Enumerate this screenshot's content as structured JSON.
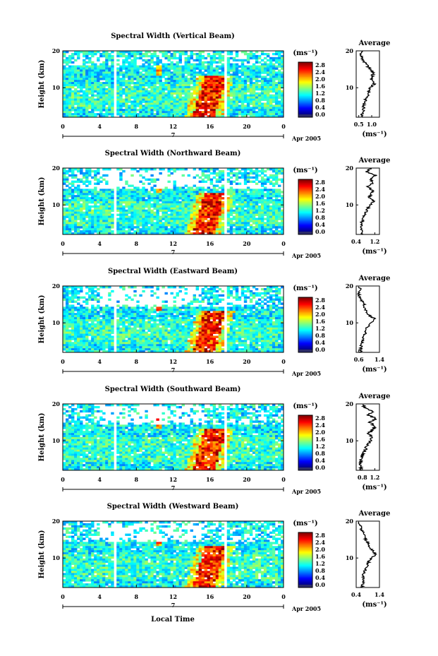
{
  "figure": {
    "xlabel": "Local Time",
    "ylabel": "Height (km)",
    "date_label": "Apr 2005",
    "date_day": "7",
    "cbar_unit": "(ms⁻¹)",
    "avg_title": "Average",
    "avg_unit": "(ms⁻¹)"
  },
  "chart_data": [
    {
      "type": "heatmap",
      "title": "Spectral Width (Vertical Beam)",
      "x_ticks": [
        "0",
        "4",
        "8",
        "12",
        "16",
        "20",
        "0"
      ],
      "y_ticks": [
        "20",
        "10"
      ],
      "xlim": [
        0,
        24
      ],
      "ylim": [
        2,
        20
      ],
      "colorbar_ticks": [
        "2.8",
        "2.4",
        "2.0",
        "1.6",
        "1.2",
        "0.8",
        "0.4",
        "0.0"
      ],
      "colorbar_range": [
        0,
        3.0
      ],
      "profile": {
        "title": "Average",
        "x_ticks": [
          "0.5",
          "1.0"
        ],
        "xlim": [
          0.4,
          1.3
        ],
        "heights": [
          2,
          3,
          4,
          5,
          6,
          7,
          8,
          9,
          10,
          11,
          12,
          13,
          14,
          15,
          16,
          17,
          18,
          19,
          20
        ],
        "values": [
          0.62,
          0.65,
          0.67,
          0.69,
          0.72,
          0.78,
          0.84,
          0.88,
          0.92,
          1.1,
          0.98,
          1.02,
          1.06,
          0.95,
          0.82,
          0.72,
          0.64,
          0.58,
          0.66
        ]
      }
    },
    {
      "type": "heatmap",
      "title": "Spectral Width (Northward Beam)",
      "x_ticks": [
        "0",
        "4",
        "8",
        "12",
        "16",
        "20",
        "0"
      ],
      "y_ticks": [
        "20",
        "10"
      ],
      "xlim": [
        0,
        24
      ],
      "ylim": [
        2,
        20
      ],
      "colorbar_ticks": [
        "2.8",
        "2.4",
        "2.0",
        "1.6",
        "1.2",
        "0.8",
        "0.4",
        "0.0"
      ],
      "colorbar_range": [
        0,
        3.0
      ],
      "profile": {
        "title": "Average",
        "x_ticks": [
          "0.4",
          "1.2"
        ],
        "xlim": [
          0.4,
          1.4
        ],
        "heights": [
          2,
          3,
          4,
          5,
          6,
          7,
          8,
          9,
          10,
          11,
          12,
          13,
          14,
          15,
          16,
          17,
          18,
          19,
          20
        ],
        "values": [
          0.6,
          0.62,
          0.64,
          0.62,
          0.68,
          0.72,
          0.8,
          0.9,
          1.0,
          1.18,
          0.95,
          1.05,
          1.1,
          0.9,
          1.15,
          1.0,
          1.25,
          0.85,
          1.05
        ]
      }
    },
    {
      "type": "heatmap",
      "title": "Spectral Width (Eastward Beam)",
      "x_ticks": [
        "0",
        "4",
        "8",
        "12",
        "16",
        "20",
        "0"
      ],
      "y_ticks": [
        "20",
        "10"
      ],
      "xlim": [
        0,
        24
      ],
      "ylim": [
        2,
        20
      ],
      "colorbar_ticks": [
        "2.8",
        "2.4",
        "2.0",
        "1.6",
        "1.2",
        "0.8",
        "0.4",
        "0.0"
      ],
      "colorbar_range": [
        0,
        3.0
      ],
      "profile": {
        "title": "Average",
        "x_ticks": [
          "0.6",
          "1.4"
        ],
        "xlim": [
          0.5,
          1.4
        ],
        "heights": [
          2,
          3,
          4,
          5,
          6,
          7,
          8,
          9,
          10,
          11,
          12,
          13,
          14,
          15,
          16,
          17,
          18,
          19,
          20
        ],
        "values": [
          0.66,
          0.68,
          0.7,
          0.72,
          0.78,
          0.84,
          0.9,
          0.95,
          1.05,
          1.22,
          1.0,
          0.92,
          0.85,
          0.8,
          0.7,
          0.62,
          0.6,
          0.7,
          0.62
        ]
      }
    },
    {
      "type": "heatmap",
      "title": "Spectral Width (Southward Beam)",
      "x_ticks": [
        "0",
        "4",
        "8",
        "12",
        "16",
        "20",
        "0"
      ],
      "y_ticks": [
        "20",
        "10"
      ],
      "xlim": [
        0,
        24
      ],
      "ylim": [
        2,
        20
      ],
      "colorbar_ticks": [
        "2.8",
        "2.4",
        "2.0",
        "1.6",
        "1.2",
        "0.8",
        "0.4",
        "0.0"
      ],
      "colorbar_range": [
        0,
        3.0
      ],
      "profile": {
        "title": "Average",
        "x_ticks": [
          "0.8",
          "1.2"
        ],
        "xlim": [
          0.6,
          1.35
        ],
        "heights": [
          2,
          3,
          4,
          5,
          6,
          7,
          8,
          9,
          10,
          11,
          12,
          13,
          14,
          15,
          16,
          17,
          18,
          19,
          20
        ],
        "values": [
          0.72,
          0.74,
          0.76,
          0.75,
          0.8,
          0.86,
          0.92,
          0.98,
          1.05,
          1.1,
          1.0,
          1.15,
          1.2,
          1.05,
          1.25,
          0.95,
          1.15,
          0.9,
          0.8
        ]
      }
    },
    {
      "type": "heatmap",
      "title": "Spectral Width (Westward Beam)",
      "x_ticks": [
        "0",
        "4",
        "8",
        "12",
        "16",
        "20",
        "0"
      ],
      "y_ticks": [
        "20",
        "10"
      ],
      "xlim": [
        0,
        24
      ],
      "ylim": [
        2,
        20
      ],
      "colorbar_ticks": [
        "2.8",
        "2.4",
        "2.0",
        "1.6",
        "1.2",
        "0.8",
        "0.4",
        "0.0"
      ],
      "colorbar_range": [
        0,
        3.0
      ],
      "profile": {
        "title": "Average",
        "x_ticks": [
          "0.4",
          "1.4"
        ],
        "xlim": [
          0.4,
          1.4
        ],
        "heights": [
          2,
          3,
          4,
          5,
          6,
          7,
          8,
          9,
          10,
          11,
          12,
          13,
          14,
          15,
          16,
          17,
          18,
          19,
          20
        ],
        "values": [
          0.65,
          0.68,
          0.7,
          0.69,
          0.74,
          0.8,
          0.88,
          0.95,
          1.05,
          1.25,
          1.1,
          0.95,
          0.9,
          0.82,
          0.75,
          0.7,
          0.62,
          0.55,
          0.5
        ]
      }
    }
  ]
}
